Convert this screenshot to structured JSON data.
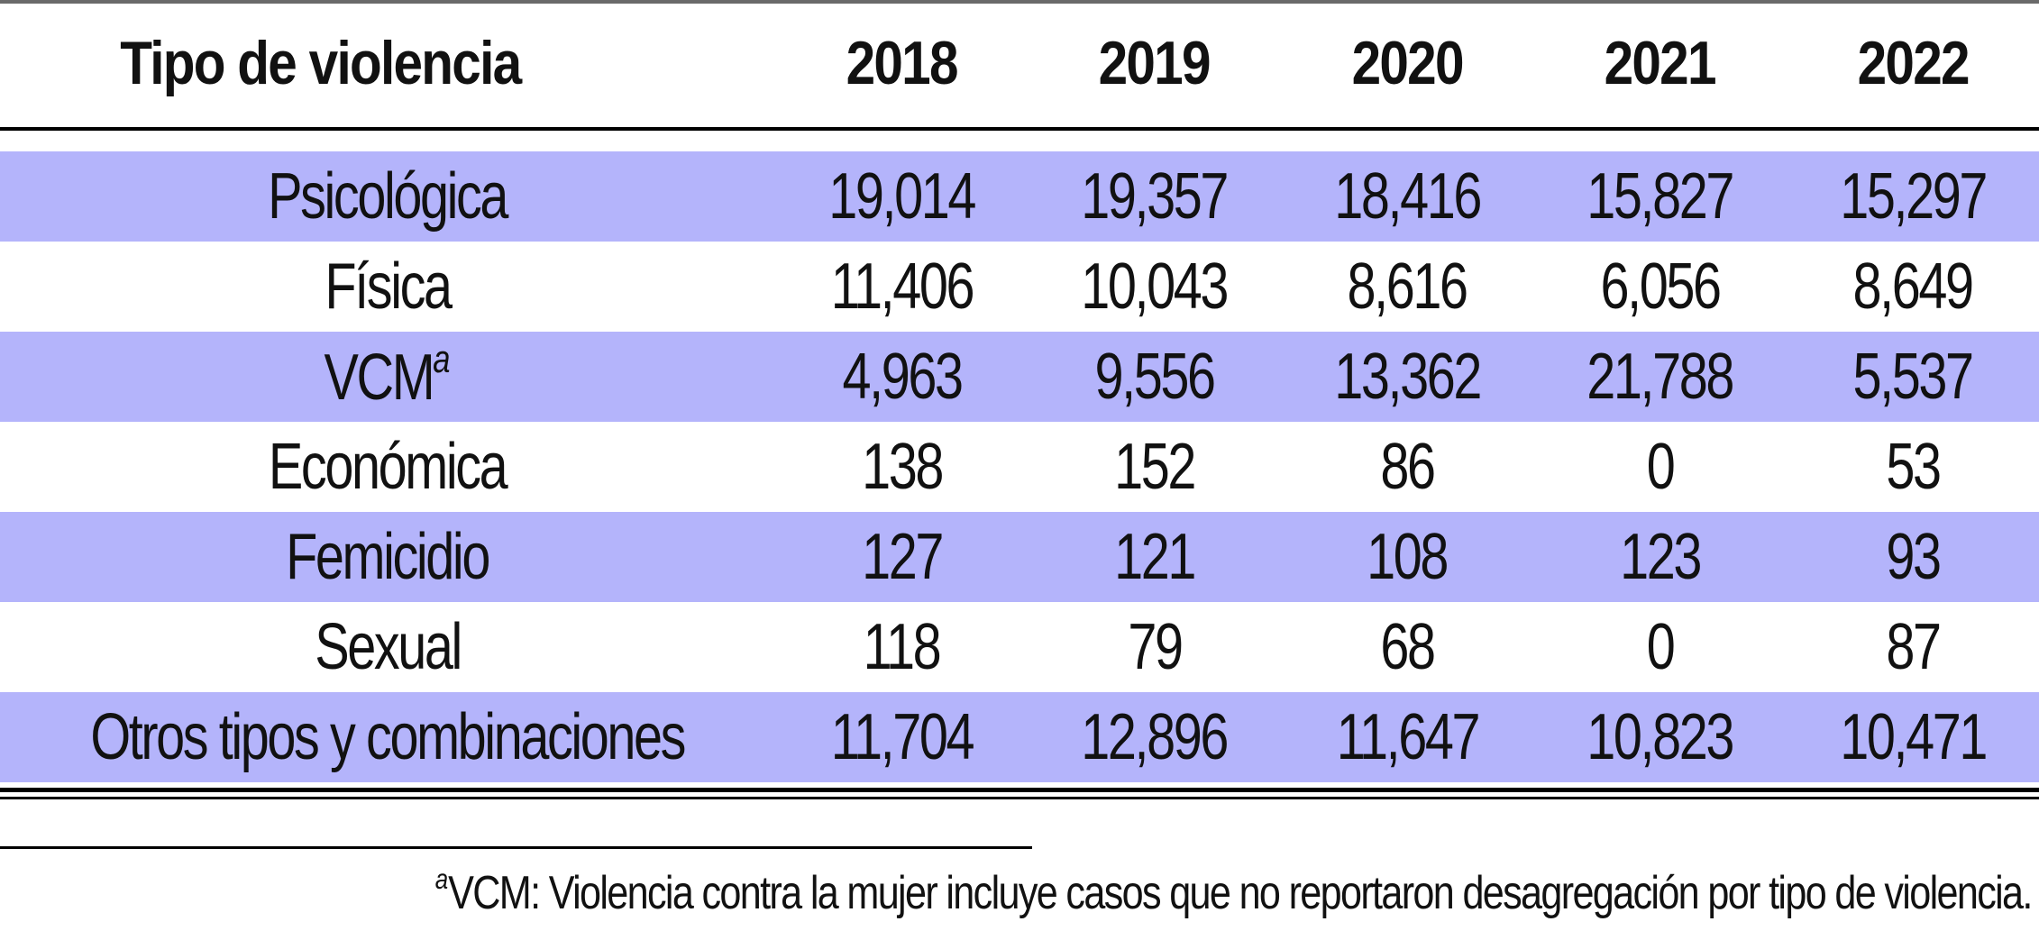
{
  "table": {
    "header": {
      "label": "Tipo de violencia",
      "years": [
        "2018",
        "2019",
        "2020",
        "2021",
        "2022"
      ]
    },
    "rows": [
      {
        "label": "Psicológica",
        "sup": "",
        "values": [
          "19,014",
          "19,357",
          "18,416",
          "15,827",
          "15,297"
        ]
      },
      {
        "label": "Física",
        "sup": "",
        "values": [
          "11,406",
          "10,043",
          "8,616",
          "6,056",
          "8,649"
        ]
      },
      {
        "label": "VCM",
        "sup": "a",
        "values": [
          "4,963",
          "9,556",
          "13,362",
          "21,788",
          "5,537"
        ]
      },
      {
        "label": "Económica",
        "sup": "",
        "values": [
          "138",
          "152",
          "86",
          "0",
          "53"
        ]
      },
      {
        "label": "Femicidio",
        "sup": "",
        "values": [
          "127",
          "121",
          "108",
          "123",
          "93"
        ]
      },
      {
        "label": "Sexual",
        "sup": "",
        "values": [
          "118",
          "79",
          "68",
          "0",
          "87"
        ]
      },
      {
        "label": "Otros tipos y combinaciones",
        "sup": "",
        "values": [
          "11,704",
          "12,896",
          "11,647",
          "10,823",
          "10,471"
        ]
      }
    ]
  },
  "footnote": {
    "marker": "a",
    "text": "VCM: Violencia contra la mujer incluye casos que no reportaron desagregación por tipo de violencia."
  },
  "colors": {
    "row_shade": "#b4b4fb",
    "rule": "#000000"
  }
}
